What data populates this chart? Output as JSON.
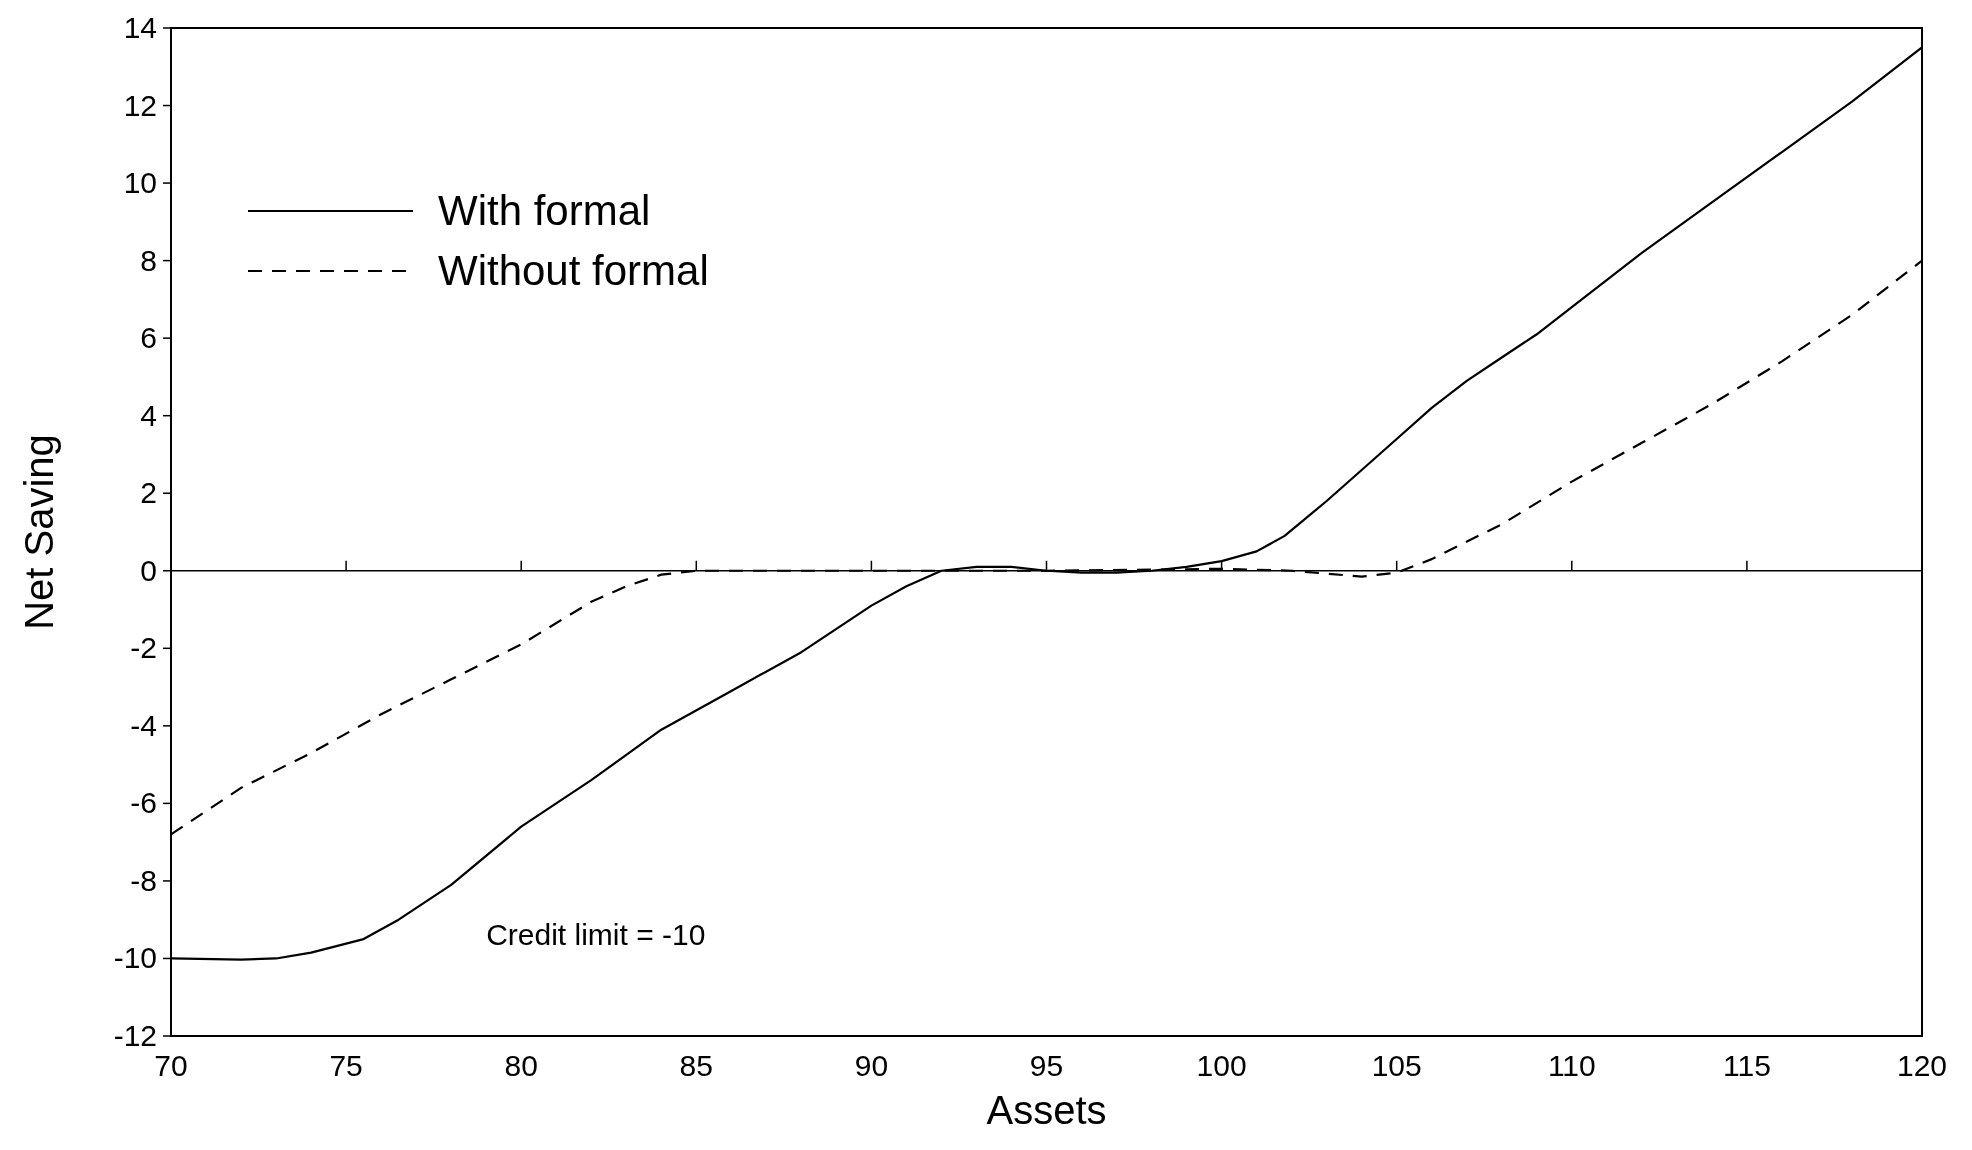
{
  "chart_data": {
    "type": "line",
    "xlabel": "Assets",
    "ylabel": "Net Saving",
    "xlim": [
      70,
      120
    ],
    "ylim": [
      -12,
      14
    ],
    "xticks": [
      70,
      75,
      80,
      85,
      90,
      95,
      100,
      105,
      110,
      115,
      120
    ],
    "yticks": [
      -12,
      -10,
      -8,
      -6,
      -4,
      -2,
      0,
      2,
      4,
      6,
      8,
      10,
      12,
      14
    ],
    "legend": "top left",
    "marker": "none",
    "annotations": [
      "Credit limit = -10"
    ],
    "series": [
      {
        "name": "With formal",
        "color": "#000000",
        "line_style": "solid",
        "x": [
          70,
          72,
          73,
          74,
          75.5,
          76.5,
          78,
          80,
          82,
          84,
          86,
          88,
          90,
          91,
          92,
          93,
          94,
          95,
          96,
          97,
          98,
          99,
          100,
          101,
          101.8,
          103,
          104,
          105,
          106,
          107,
          108,
          109,
          110,
          112,
          114,
          116,
          118,
          120
        ],
        "values": [
          -10,
          -10.03,
          -10,
          -9.85,
          -9.5,
          -9,
          -8.1,
          -6.6,
          -5.4,
          -4.1,
          -3.1,
          -2.1,
          -0.9,
          -0.4,
          0,
          0.1,
          0.1,
          0,
          -0.05,
          -0.05,
          0,
          0.1,
          0.25,
          0.5,
          0.9,
          1.8,
          2.6,
          3.4,
          4.2,
          4.9,
          5.5,
          6.1,
          6.8,
          8.2,
          9.5,
          10.8,
          12.1,
          13.5
        ]
      },
      {
        "name": "Without formal",
        "color": "#000000",
        "line_style": "dashed",
        "x": [
          70,
          72,
          74,
          76,
          78,
          80,
          82,
          83,
          84,
          85,
          90,
          95,
          100,
          102,
          104,
          105,
          106,
          108,
          110,
          112,
          114,
          116,
          118,
          120
        ],
        "values": [
          -6.8,
          -5.6,
          -4.7,
          -3.7,
          -2.8,
          -1.9,
          -0.8,
          -0.4,
          -0.1,
          0,
          0,
          0,
          0.05,
          0,
          -0.15,
          -0.05,
          0.3,
          1.2,
          2.3,
          3.3,
          4.3,
          5.4,
          6.6,
          8.0
        ]
      }
    ]
  }
}
